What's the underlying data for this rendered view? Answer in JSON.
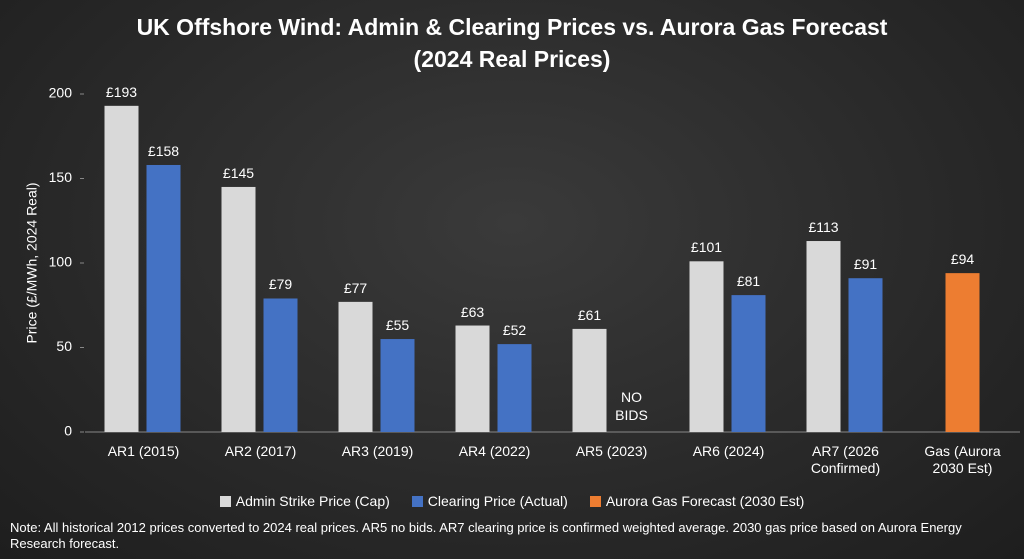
{
  "chart_data": {
    "type": "bar",
    "title": "UK Offshore Wind: Admin & Clearing Prices vs. Aurora Gas Forecast",
    "subtitle": "(2024 Real Prices)",
    "y_label": "Price (£/MWh, 2024 Real)",
    "categories": [
      "AR1 (2015)",
      "AR2 (2017)",
      "AR3 (2019)",
      "AR4 (2022)",
      "AR5 (2023)",
      "AR6 (2024)",
      "AR7 (2026 Confirmed)",
      "Gas (Aurora 2030 Est)"
    ],
    "series": [
      {
        "name": "Admin Strike Price (Cap)",
        "color": "#d9d9d9",
        "values": [
          193,
          145,
          77,
          63,
          61,
          101,
          113,
          null
        ],
        "value_labels": [
          "£193",
          "£145",
          "£77",
          "£63",
          "£61",
          "£101",
          "£113",
          null
        ]
      },
      {
        "name": "Clearing Price (Actual)",
        "color": "#4472c4",
        "values": [
          158,
          79,
          55,
          52,
          null,
          81,
          91,
          null
        ],
        "value_labels": [
          "£158",
          "£79",
          "£55",
          "£52",
          null,
          "£81",
          "£91",
          null
        ]
      },
      {
        "name": "Aurora Gas Forecast (2030 Est)",
        "color": "#ed7d31",
        "values": [
          null,
          null,
          null,
          null,
          null,
          null,
          null,
          94
        ],
        "value_labels": [
          null,
          null,
          null,
          null,
          null,
          null,
          null,
          "£94"
        ]
      }
    ],
    "annotations": [
      "NO BIDS"
    ],
    "ylim": [
      0,
      200
    ],
    "yticks": [
      0,
      50,
      100,
      150,
      200
    ],
    "grid": false,
    "legend": "bottom",
    "note": "Note: All historical 2012 prices converted to 2024 real prices. AR5 no bids. AR7 clearing price is confirmed weighted average. 2030 gas price based on Aurora Energy Research forecast."
  }
}
